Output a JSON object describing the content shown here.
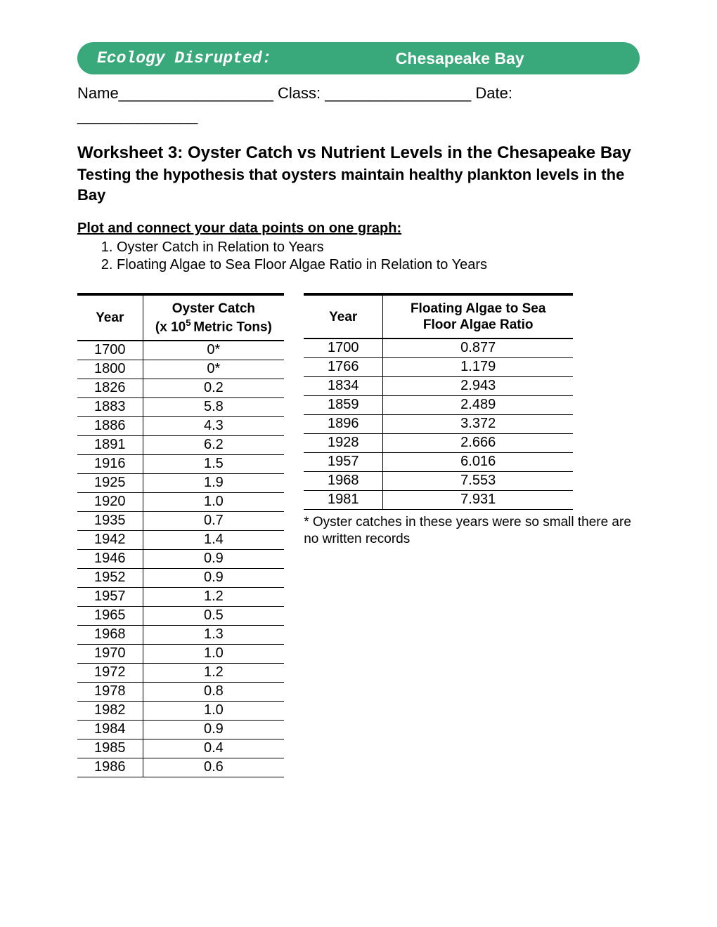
{
  "banner": {
    "left": "Ecology Disrupted:",
    "right": "Chesapeake Bay",
    "bg_color": "#39a97b",
    "text_color": "#ffffff"
  },
  "form": {
    "line1": "Name__________________  Class: _________________   Date:",
    "line2": "______________"
  },
  "title": "Worksheet 3: Oyster Catch vs Nutrient Levels in the Chesapeake Bay",
  "subtitle": "Testing the hypothesis that oysters maintain healthy plankton levels in the Bay",
  "instruction": "Plot and connect your data points on one graph: ",
  "list": [
    "Oyster Catch in Relation to Years",
    "Floating Algae to Sea Floor Algae Ratio in Relation to Years"
  ],
  "table1": {
    "col1_header": "Year",
    "col2_header_html": "Oyster Catch<br>(x 10<sup>5 </sup>Metric Tons)",
    "rows": [
      [
        "1700",
        "0*"
      ],
      [
        "1800",
        "0*"
      ],
      [
        "1826",
        "0.2"
      ],
      [
        "1883",
        "5.8"
      ],
      [
        "1886",
        "4.3"
      ],
      [
        "1891",
        "6.2"
      ],
      [
        "1916",
        "1.5"
      ],
      [
        "1925",
        "1.9"
      ],
      [
        "1920",
        "1.0"
      ],
      [
        "1935",
        "0.7"
      ],
      [
        "1942",
        "1.4"
      ],
      [
        "1946",
        "0.9"
      ],
      [
        "1952",
        "0.9"
      ],
      [
        "1957",
        "1.2"
      ],
      [
        "1965",
        "0.5"
      ],
      [
        "1968",
        "1.3"
      ],
      [
        "1970",
        "1.0"
      ],
      [
        "1972",
        "1.2"
      ],
      [
        "1978",
        "0.8"
      ],
      [
        "1982",
        "1.0"
      ],
      [
        "1984",
        "0.9"
      ],
      [
        "1985",
        "0.4"
      ],
      [
        "1986",
        "0.6"
      ]
    ]
  },
  "table2": {
    "col1_header": "Year",
    "col2_header_html": "Floating Algae to Sea<br>Floor Algae Ratio",
    "rows": [
      [
        "1700",
        "0.877"
      ],
      [
        "1766",
        "1.179"
      ],
      [
        "1834",
        "2.943"
      ],
      [
        "1859",
        "2.489"
      ],
      [
        "1896",
        "3.372"
      ],
      [
        "1928",
        "2.666"
      ],
      [
        "1957",
        "6.016"
      ],
      [
        "1968",
        "7.553"
      ],
      [
        "1981",
        "7.931"
      ]
    ]
  },
  "footnote": "* Oyster catches in these years were so small there are no written records"
}
